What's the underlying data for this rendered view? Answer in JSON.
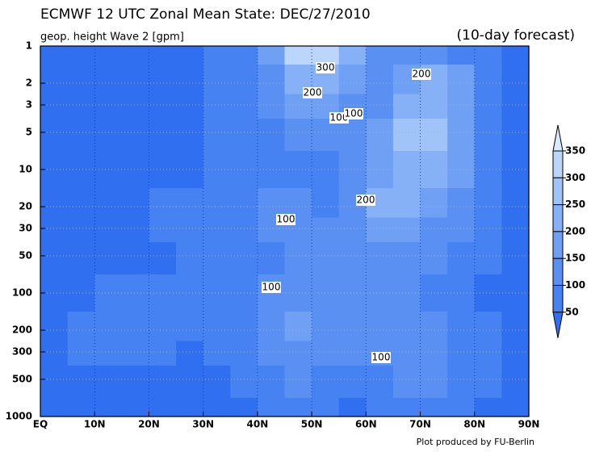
{
  "chart_data": {
    "type": "contour",
    "title": "ECMWF 12 UTC Zonal Mean State: DEC/27/2010",
    "subtitle": "geop. height Wave 2 [gpm]",
    "forecast_note": "(10-day forecast)",
    "credit": "Plot produced by FU-Berlin",
    "xlim": [
      0,
      90
    ],
    "xticks": [
      {
        "value": 0,
        "label": "EQ"
      },
      {
        "value": 10,
        "label": "10N"
      },
      {
        "value": 20,
        "label": "20N"
      },
      {
        "value": 30,
        "label": "30N"
      },
      {
        "value": 40,
        "label": "40N"
      },
      {
        "value": 50,
        "label": "50N"
      },
      {
        "value": 60,
        "label": "60N"
      },
      {
        "value": 70,
        "label": "70N"
      },
      {
        "value": 80,
        "label": "80N"
      },
      {
        "value": 90,
        "label": "90N"
      }
    ],
    "ylim": [
      1000,
      1
    ],
    "y_log": true,
    "yticks": [
      1,
      2,
      3,
      5,
      10,
      20,
      30,
      50,
      100,
      200,
      300,
      500,
      1000
    ],
    "grid": true,
    "x": [
      2.5,
      7.5,
      12.5,
      17.5,
      22.5,
      27.5,
      32.5,
      37.5,
      42.5,
      47.5,
      52.5,
      57.5,
      62.5,
      67.5,
      72.5,
      77.5,
      82.5,
      87.5
    ],
    "y": [
      1,
      2,
      3,
      5,
      10,
      20,
      30,
      50,
      100,
      200,
      300,
      500,
      1000
    ],
    "z": [
      [
        30,
        30,
        30,
        30,
        35,
        40,
        55,
        90,
        180,
        300,
        310,
        220,
        100,
        110,
        110,
        90,
        60,
        30
      ],
      [
        30,
        30,
        30,
        30,
        35,
        40,
        55,
        80,
        140,
        220,
        240,
        180,
        120,
        170,
        210,
        150,
        70,
        30
      ],
      [
        30,
        30,
        30,
        30,
        35,
        40,
        55,
        80,
        120,
        170,
        180,
        130,
        120,
        220,
        240,
        170,
        80,
        30
      ],
      [
        30,
        30,
        30,
        30,
        35,
        40,
        55,
        75,
        95,
        110,
        110,
        100,
        150,
        250,
        270,
        190,
        80,
        30
      ],
      [
        30,
        30,
        30,
        30,
        35,
        40,
        60,
        75,
        80,
        80,
        80,
        100,
        170,
        230,
        240,
        180,
        80,
        30
      ],
      [
        30,
        30,
        30,
        35,
        55,
        60,
        70,
        90,
        110,
        100,
        90,
        120,
        210,
        220,
        190,
        140,
        70,
        30
      ],
      [
        30,
        30,
        30,
        35,
        50,
        55,
        65,
        80,
        100,
        110,
        100,
        110,
        160,
        150,
        130,
        110,
        60,
        30
      ],
      [
        30,
        30,
        30,
        35,
        45,
        50,
        55,
        70,
        90,
        100,
        100,
        110,
        120,
        110,
        100,
        80,
        55,
        30
      ],
      [
        30,
        40,
        55,
        60,
        55,
        50,
        50,
        70,
        110,
        120,
        110,
        100,
        100,
        100,
        95,
        70,
        45,
        30
      ],
      [
        30,
        60,
        80,
        80,
        70,
        55,
        50,
        75,
        130,
        150,
        120,
        100,
        110,
        130,
        120,
        80,
        50,
        30
      ],
      [
        30,
        50,
        65,
        65,
        55,
        45,
        50,
        75,
        120,
        140,
        110,
        100,
        110,
        120,
        110,
        80,
        50,
        30
      ],
      [
        30,
        35,
        40,
        40,
        40,
        40,
        45,
        60,
        90,
        100,
        95,
        80,
        80,
        100,
        110,
        90,
        60,
        30
      ],
      [
        30,
        30,
        30,
        30,
        30,
        30,
        35,
        45,
        60,
        65,
        50,
        45,
        50,
        60,
        70,
        60,
        40,
        30
      ]
    ],
    "levels": [
      50,
      100,
      150,
      200,
      250,
      300,
      350
    ],
    "colors": [
      "#2f6ff0",
      "#4682f1",
      "#5a90f2",
      "#6fa0f4",
      "#86b1f6",
      "#a0c4f8",
      "#bbd6fa",
      "#d8ebfc"
    ],
    "contour_labels": [
      300,
      200,
      100,
      100,
      200,
      200,
      100,
      100,
      100
    ]
  }
}
